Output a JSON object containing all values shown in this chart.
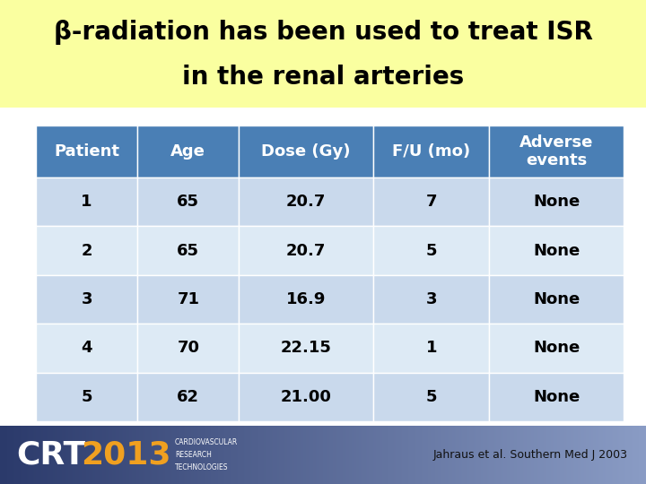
{
  "title_line1": "β-radiation has been used to treat ISR",
  "title_line2": "in the renal arteries",
  "title_bg": "#FAFFA0",
  "title_fontsize": 20,
  "title_color": "#000000",
  "header": [
    "Patient",
    "Age",
    "Dose (Gy)",
    "F/U (mo)",
    "Adverse\nevents"
  ],
  "header_bg": "#4A7FB5",
  "header_text_color": "#FFFFFF",
  "rows": [
    [
      "1",
      "65",
      "20.7",
      "7",
      "None"
    ],
    [
      "2",
      "65",
      "20.7",
      "5",
      "None"
    ],
    [
      "3",
      "71",
      "16.9",
      "3",
      "None"
    ],
    [
      "4",
      "70",
      "22.15",
      "1",
      "None"
    ],
    [
      "5",
      "62",
      "21.00",
      "5",
      "None"
    ]
  ],
  "row_bg_odd": "#C9D9EC",
  "row_bg_even": "#DDEAF5",
  "row_text_color": "#000000",
  "cell_fontsize": 13,
  "header_fontsize": 13,
  "footer_bg_left": "#2B3A6B",
  "footer_bg_right": "#8A9CC5",
  "footer_text_color": "#FFFFFF",
  "crt_sub": "CARDIOVASCULAR\nRESEARCH\nTECHNOLOGIES",
  "citation": "Jahraus et al. Southern Med J 2003",
  "citation_color": "#111111",
  "bg_color": "#FFFFFF",
  "fig_width": 7.2,
  "fig_height": 5.4,
  "dpi": 100
}
